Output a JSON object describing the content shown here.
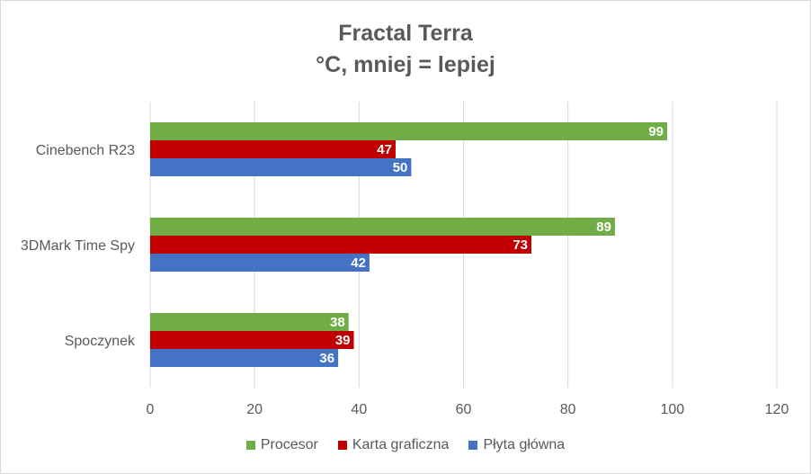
{
  "chart_data": {
    "type": "bar",
    "orientation": "horizontal",
    "title": "Fractal Terra",
    "subtitle": "°C, mniej = lepiej",
    "categories": [
      "Cinebench R23",
      "3DMark Time Spy",
      "Spoczynek"
    ],
    "series": [
      {
        "name": "Procesor",
        "color": "#70ad47",
        "values": [
          99,
          89,
          38
        ]
      },
      {
        "name": "Karta graficzna",
        "color": "#c00000",
        "values": [
          47,
          73,
          39
        ]
      },
      {
        "name": "Płyta główna",
        "color": "#4472c4",
        "values": [
          50,
          42,
          36
        ]
      }
    ],
    "xlim": [
      0,
      120
    ],
    "xticks": [
      0,
      20,
      40,
      60,
      80,
      100,
      120
    ],
    "grid": true,
    "legend_position": "bottom"
  }
}
